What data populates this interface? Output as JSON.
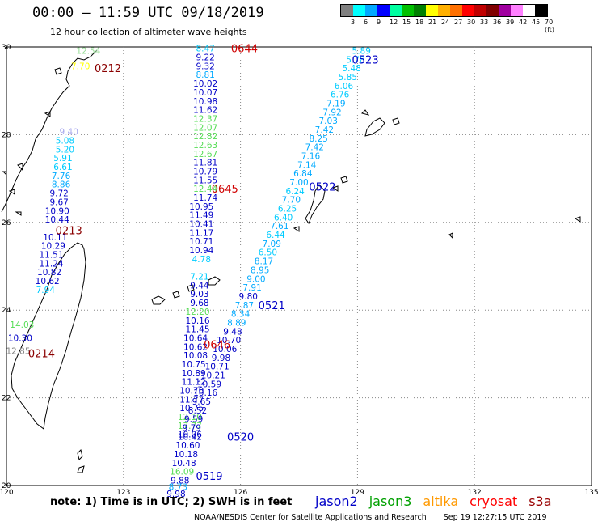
{
  "title": "00:00 – 11:59 UTC 09/18/2019",
  "subtitle": "12 hour collection of altimeter wave heights",
  "legend": {
    "colors": [
      "#808080",
      "#00ffff",
      "#00a8ff",
      "#0000ff",
      "#00ffa0",
      "#00c000",
      "#008000",
      "#ffff00",
      "#ffb000",
      "#ff7000",
      "#ff0000",
      "#c00000",
      "#800000",
      "#a000a0",
      "#ff80ff",
      "#ffffff",
      "#000000"
    ],
    "labels": [
      "3",
      "6",
      "9",
      "12",
      "15",
      "18",
      "21",
      "24",
      "27",
      "30",
      "33",
      "36",
      "39",
      "42",
      "45",
      "70 (ft)"
    ]
  },
  "colors": {
    "jason2": "#0000c8",
    "jason3": "#00a000",
    "altika": "#ff9900",
    "cryosat": "#ff0000",
    "s3a": "#990000",
    "grid": "#888888",
    "coast": "#000000"
  },
  "axes": {
    "lon_ticks": [
      "120",
      "123",
      "126",
      "129",
      "132",
      "135"
    ],
    "lat_ticks": [
      "30",
      "28",
      "26",
      "24",
      "22",
      "20"
    ],
    "lon_range": [
      120,
      135
    ],
    "lat_range": [
      20,
      30
    ]
  },
  "passes": [
    {
      "label": "0644",
      "color": "#d00000",
      "lon": 126.1,
      "lat": 29.95
    },
    {
      "label": "0645",
      "color": "#d00000",
      "lon": 125.6,
      "lat": 26.75
    },
    {
      "label": "0646",
      "color": "#d00000",
      "lon": 125.4,
      "lat": 23.2
    },
    {
      "label": "0212",
      "color": "#8b0000",
      "lon": 122.6,
      "lat": 29.5
    },
    {
      "label": "0213",
      "color": "#8b0000",
      "lon": 121.6,
      "lat": 25.8
    },
    {
      "label": "0214",
      "color": "#8b0000",
      "lon": 120.9,
      "lat": 23.0
    },
    {
      "label": "0523",
      "color": "#0000c8",
      "lon": 129.2,
      "lat": 29.7
    },
    {
      "label": "0522",
      "color": "#0000c8",
      "lon": 128.1,
      "lat": 26.8
    },
    {
      "label": "0521",
      "color": "#0000c8",
      "lon": 126.8,
      "lat": 24.1
    },
    {
      "label": "0520",
      "color": "#0000c8",
      "lon": 126.0,
      "lat": 21.1
    },
    {
      "label": "0519",
      "color": "#0000c8",
      "lon": 125.2,
      "lat": 20.2
    }
  ],
  "tracks": [
    {
      "name": "cryosat-pass-0644-0646",
      "points": [
        {
          "lon": 125.1,
          "lat": 29.95,
          "v": "8.47",
          "c": "#00ccff"
        },
        {
          "lon": 125.1,
          "lat": 29.75,
          "v": "9.22",
          "c": "#0000c8"
        },
        {
          "lon": 125.1,
          "lat": 29.55,
          "v": "9.32",
          "c": "#0000c8"
        },
        {
          "lon": 125.1,
          "lat": 29.35,
          "v": "8.81",
          "c": "#00aaff"
        },
        {
          "lon": 125.1,
          "lat": 29.15,
          "v": "10.02",
          "c": "#0000c8"
        },
        {
          "lon": 125.1,
          "lat": 28.95,
          "v": "10.07",
          "c": "#0000c8"
        },
        {
          "lon": 125.1,
          "lat": 28.75,
          "v": "10.98",
          "c": "#0000c8"
        },
        {
          "lon": 125.1,
          "lat": 28.55,
          "v": "11.62",
          "c": "#0000c8"
        },
        {
          "lon": 125.1,
          "lat": 28.35,
          "v": "12.37",
          "c": "#55dd55"
        },
        {
          "lon": 125.1,
          "lat": 28.15,
          "v": "12.07",
          "c": "#55dd55"
        },
        {
          "lon": 125.1,
          "lat": 27.95,
          "v": "12.82",
          "c": "#55dd55"
        },
        {
          "lon": 125.1,
          "lat": 27.75,
          "v": "12.63",
          "c": "#55dd55"
        },
        {
          "lon": 125.1,
          "lat": 27.55,
          "v": "12.67",
          "c": "#55dd55"
        },
        {
          "lon": 125.1,
          "lat": 27.35,
          "v": "11.81",
          "c": "#0000c8"
        },
        {
          "lon": 125.1,
          "lat": 27.15,
          "v": "10.79",
          "c": "#0000c8"
        },
        {
          "lon": 125.1,
          "lat": 26.95,
          "v": "11.55",
          "c": "#0000c8"
        },
        {
          "lon": 125.1,
          "lat": 26.75,
          "v": "12.44",
          "c": "#55dd55"
        },
        {
          "lon": 125.1,
          "lat": 26.55,
          "v": "11.74",
          "c": "#0000c8"
        },
        {
          "lon": 125.0,
          "lat": 26.35,
          "v": "10.95",
          "c": "#0000c8"
        },
        {
          "lon": 125.0,
          "lat": 26.15,
          "v": "11.49",
          "c": "#0000c8"
        },
        {
          "lon": 125.0,
          "lat": 25.95,
          "v": "10.41",
          "c": "#0000c8"
        },
        {
          "lon": 125.0,
          "lat": 25.75,
          "v": "11.17",
          "c": "#0000c8"
        },
        {
          "lon": 125.0,
          "lat": 25.55,
          "v": "10.71",
          "c": "#0000c8"
        },
        {
          "lon": 125.0,
          "lat": 25.35,
          "v": "10.94",
          "c": "#0000c8"
        },
        {
          "lon": 125.0,
          "lat": 25.15,
          "v": "4.78",
          "c": "#00ccff"
        },
        {
          "lon": 124.95,
          "lat": 24.75,
          "v": "7.21",
          "c": "#00ccff"
        },
        {
          "lon": 124.95,
          "lat": 24.55,
          "v": "9.44",
          "c": "#0000c8"
        },
        {
          "lon": 124.95,
          "lat": 24.35,
          "v": "9.03",
          "c": "#0000c8"
        },
        {
          "lon": 124.95,
          "lat": 24.15,
          "v": "9.68",
          "c": "#0000c8"
        },
        {
          "lon": 124.9,
          "lat": 23.95,
          "v": "12.20",
          "c": "#55dd55"
        },
        {
          "lon": 124.9,
          "lat": 23.75,
          "v": "10.16",
          "c": "#0000c8"
        },
        {
          "lon": 124.9,
          "lat": 23.55,
          "v": "11.45",
          "c": "#0000c8"
        },
        {
          "lon": 124.85,
          "lat": 23.35,
          "v": "10.64",
          "c": "#0000c8"
        },
        {
          "lon": 124.85,
          "lat": 23.15,
          "v": "10.62",
          "c": "#0000c8"
        },
        {
          "lon": 124.85,
          "lat": 22.95,
          "v": "10.08",
          "c": "#0000c8"
        },
        {
          "lon": 124.8,
          "lat": 22.75,
          "v": "10.75",
          "c": "#0000c8"
        },
        {
          "lon": 124.8,
          "lat": 22.55,
          "v": "10.89",
          "c": "#0000c8"
        },
        {
          "lon": 124.8,
          "lat": 22.35,
          "v": "11.12",
          "c": "#0000c8"
        },
        {
          "lon": 124.75,
          "lat": 22.15,
          "v": "10.70",
          "c": "#0000c8"
        },
        {
          "lon": 124.75,
          "lat": 21.95,
          "v": "11.77",
          "c": "#0000c8"
        },
        {
          "lon": 124.75,
          "lat": 21.75,
          "v": "10.75",
          "c": "#0000c8"
        },
        {
          "lon": 124.7,
          "lat": 21.55,
          "v": "12.10",
          "c": "#55dd55"
        },
        {
          "lon": 124.7,
          "lat": 21.35,
          "v": "17.77",
          "c": "#55dd55"
        },
        {
          "lon": 124.7,
          "lat": 21.15,
          "v": "10.06",
          "c": "#0000c8"
        }
      ]
    },
    {
      "name": "s3a-pass-0212-0214",
      "points": [
        {
          "lon": 122.1,
          "lat": 29.9,
          "v": "12.54",
          "c": "#99dd99"
        },
        {
          "lon": 121.9,
          "lat": 29.55,
          "v": "7.70",
          "c": "#ffff00"
        },
        {
          "lon": 121.6,
          "lat": 28.05,
          "v": "9.40",
          "c": "#aaaaee"
        },
        {
          "lon": 121.5,
          "lat": 27.85,
          "v": "5.08",
          "c": "#00ccff"
        },
        {
          "lon": 121.5,
          "lat": 27.65,
          "v": "5.20",
          "c": "#00ccff"
        },
        {
          "lon": 121.45,
          "lat": 27.45,
          "v": "5.91",
          "c": "#00ccff"
        },
        {
          "lon": 121.45,
          "lat": 27.25,
          "v": "6.61",
          "c": "#00ccff"
        },
        {
          "lon": 121.4,
          "lat": 27.05,
          "v": "7.76",
          "c": "#00aaff"
        },
        {
          "lon": 121.4,
          "lat": 26.85,
          "v": "8.86",
          "c": "#00aaff"
        },
        {
          "lon": 121.35,
          "lat": 26.65,
          "v": "9.72",
          "c": "#0000c8"
        },
        {
          "lon": 121.35,
          "lat": 26.45,
          "v": "9.67",
          "c": "#0000c8"
        },
        {
          "lon": 121.3,
          "lat": 26.25,
          "v": "10.90",
          "c": "#0000c8"
        },
        {
          "lon": 121.3,
          "lat": 26.05,
          "v": "10.44",
          "c": "#0000c8"
        },
        {
          "lon": 121.25,
          "lat": 25.65,
          "v": "10.11",
          "c": "#0000c8"
        },
        {
          "lon": 121.2,
          "lat": 25.45,
          "v": "10.29",
          "c": "#0000c8"
        },
        {
          "lon": 121.15,
          "lat": 25.25,
          "v": "11.51",
          "c": "#0000c8"
        },
        {
          "lon": 121.15,
          "lat": 25.05,
          "v": "11.24",
          "c": "#0000c8"
        },
        {
          "lon": 121.1,
          "lat": 24.85,
          "v": "10.82",
          "c": "#0000c8"
        },
        {
          "lon": 121.05,
          "lat": 24.65,
          "v": "10.62",
          "c": "#0000c8"
        },
        {
          "lon": 121.0,
          "lat": 24.45,
          "v": "7.94",
          "c": "#00ccff"
        },
        {
          "lon": 120.4,
          "lat": 23.65,
          "v": "14.03",
          "c": "#55dd55"
        },
        {
          "lon": 120.35,
          "lat": 23.35,
          "v": "10.30",
          "c": "#0000c8"
        },
        {
          "lon": 120.3,
          "lat": 23.05,
          "v": "12.85",
          "c": "#888888"
        }
      ]
    },
    {
      "name": "jason2-pass-0519-0523",
      "points": [
        {
          "lon": 129.1,
          "lat": 29.9,
          "v": "5.89",
          "c": "#00ccff"
        },
        {
          "lon": 128.95,
          "lat": 29.7,
          "v": "5.78",
          "c": "#00ccff"
        },
        {
          "lon": 128.85,
          "lat": 29.5,
          "v": "5.48",
          "c": "#00ccff"
        },
        {
          "lon": 128.75,
          "lat": 29.3,
          "v": "5.85",
          "c": "#00ccff"
        },
        {
          "lon": 128.65,
          "lat": 29.1,
          "v": "6.06",
          "c": "#00ccff"
        },
        {
          "lon": 128.55,
          "lat": 28.9,
          "v": "6.76",
          "c": "#00ccff"
        },
        {
          "lon": 128.45,
          "lat": 28.7,
          "v": "7.19",
          "c": "#00aaff"
        },
        {
          "lon": 128.35,
          "lat": 28.5,
          "v": "7.92",
          "c": "#00aaff"
        },
        {
          "lon": 128.25,
          "lat": 28.3,
          "v": "7.03",
          "c": "#00aaff"
        },
        {
          "lon": 128.15,
          "lat": 28.1,
          "v": "7.42",
          "c": "#00aaff"
        },
        {
          "lon": 128.0,
          "lat": 27.9,
          "v": "8.25",
          "c": "#00aaff"
        },
        {
          "lon": 127.9,
          "lat": 27.7,
          "v": "7.42",
          "c": "#00aaff"
        },
        {
          "lon": 127.8,
          "lat": 27.5,
          "v": "7.16",
          "c": "#00aaff"
        },
        {
          "lon": 127.7,
          "lat": 27.3,
          "v": "7.14",
          "c": "#00aaff"
        },
        {
          "lon": 127.6,
          "lat": 27.1,
          "v": "6.84",
          "c": "#00aaff"
        },
        {
          "lon": 127.5,
          "lat": 26.9,
          "v": "7.00",
          "c": "#00aaff"
        },
        {
          "lon": 127.4,
          "lat": 26.7,
          "v": "6.24",
          "c": "#00ccff"
        },
        {
          "lon": 127.3,
          "lat": 26.5,
          "v": "7.70",
          "c": "#00aaff"
        },
        {
          "lon": 127.2,
          "lat": 26.3,
          "v": "6.25",
          "c": "#00ccff"
        },
        {
          "lon": 127.1,
          "lat": 26.1,
          "v": "6.40",
          "c": "#00ccff"
        },
        {
          "lon": 127.0,
          "lat": 25.9,
          "v": "7.61",
          "c": "#00aaff"
        },
        {
          "lon": 126.9,
          "lat": 25.7,
          "v": "6.44",
          "c": "#00ccff"
        },
        {
          "lon": 126.8,
          "lat": 25.5,
          "v": "7.09",
          "c": "#00aaff"
        },
        {
          "lon": 126.7,
          "lat": 25.3,
          "v": "6.50",
          "c": "#00ccff"
        },
        {
          "lon": 126.6,
          "lat": 25.1,
          "v": "8.17",
          "c": "#00aaff"
        },
        {
          "lon": 126.5,
          "lat": 24.9,
          "v": "8.95",
          "c": "#00aaff"
        },
        {
          "lon": 126.4,
          "lat": 24.7,
          "v": "9.00",
          "c": "#00aaff"
        },
        {
          "lon": 126.3,
          "lat": 24.5,
          "v": "7.91",
          "c": "#00aaff"
        },
        {
          "lon": 126.2,
          "lat": 24.3,
          "v": "9.80",
          "c": "#0000c8"
        },
        {
          "lon": 126.1,
          "lat": 24.1,
          "v": "7.87",
          "c": "#00aaff"
        },
        {
          "lon": 126.0,
          "lat": 23.9,
          "v": "8.34",
          "c": "#00aaff"
        },
        {
          "lon": 125.9,
          "lat": 23.7,
          "v": "8.89",
          "c": "#00aaff"
        },
        {
          "lon": 125.8,
          "lat": 23.5,
          "v": "9.48",
          "c": "#0000c8"
        },
        {
          "lon": 125.7,
          "lat": 23.3,
          "v": "10.70",
          "c": "#0000c8"
        },
        {
          "lon": 125.6,
          "lat": 23.1,
          "v": "10.06",
          "c": "#0000c8"
        },
        {
          "lon": 125.5,
          "lat": 22.9,
          "v": "9.98",
          "c": "#0000c8"
        },
        {
          "lon": 125.4,
          "lat": 22.7,
          "v": "10.71",
          "c": "#0000c8"
        },
        {
          "lon": 125.3,
          "lat": 22.5,
          "v": "10.21",
          "c": "#0000c8"
        },
        {
          "lon": 125.2,
          "lat": 22.3,
          "v": "10.59",
          "c": "#0000c8"
        },
        {
          "lon": 125.1,
          "lat": 22.1,
          "v": "10.16",
          "c": "#0000c8"
        },
        {
          "lon": 125.0,
          "lat": 21.9,
          "v": "9.65",
          "c": "#0000c8"
        },
        {
          "lon": 124.9,
          "lat": 21.7,
          "v": "8.52",
          "c": "#0000c8"
        },
        {
          "lon": 124.8,
          "lat": 21.5,
          "v": "9.59",
          "c": "#0000c8"
        },
        {
          "lon": 124.75,
          "lat": 21.3,
          "v": "9.79",
          "c": "#0000c8"
        },
        {
          "lon": 124.7,
          "lat": 21.1,
          "v": "10.42",
          "c": "#0000c8"
        },
        {
          "lon": 124.65,
          "lat": 20.9,
          "v": "10.60",
          "c": "#0000c8"
        },
        {
          "lon": 124.6,
          "lat": 20.7,
          "v": "10.18",
          "c": "#0000c8"
        },
        {
          "lon": 124.55,
          "lat": 20.5,
          "v": "10.48",
          "c": "#0000c8"
        },
        {
          "lon": 124.5,
          "lat": 20.3,
          "v": "16.09",
          "c": "#55dd55"
        },
        {
          "lon": 124.45,
          "lat": 20.1,
          "v": "9.88",
          "c": "#0000c8"
        },
        {
          "lon": 124.4,
          "lat": 19.95,
          "v": "8.73",
          "c": "#00aaff"
        },
        {
          "lon": 124.35,
          "lat": 19.8,
          "v": "9.98",
          "c": "#0000c8"
        }
      ]
    }
  ],
  "note": "note: 1) Time is in UTC; 2) SWH is in feet",
  "satellites": [
    {
      "name": "jason2",
      "color": "#0000c8"
    },
    {
      "name": "jason3",
      "color": "#00a000"
    },
    {
      "name": "altika",
      "color": "#ff9900"
    },
    {
      "name": "cryosat",
      "color": "#ff0000"
    },
    {
      "name": "s3a",
      "color": "#990000"
    }
  ],
  "footer": {
    "source": "NOAA/NESDIS Center for Satellite Applications and Research",
    "timestamp": "Sep 19 12:27:15 UTC 2019"
  }
}
